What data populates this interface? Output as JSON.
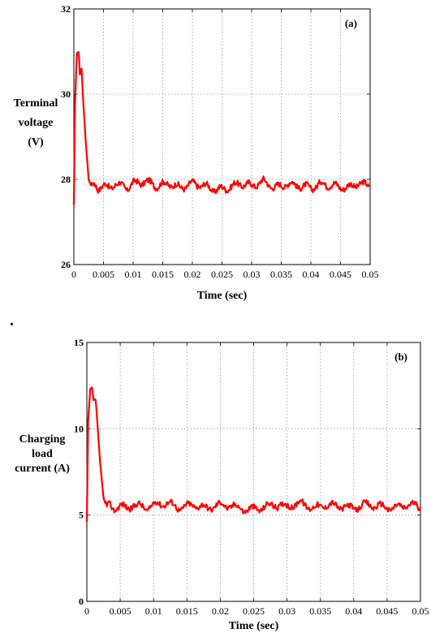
{
  "separator_mark": ".",
  "chart_data": [
    {
      "type": "line",
      "panel_label": "(a)",
      "ylabel_lines": [
        "Terminal",
        "voltage",
        "(V)"
      ],
      "xlabel": "Time (sec)",
      "xlim": [
        0,
        0.05
      ],
      "ylim": [
        26,
        32
      ],
      "x_ticks": [
        0,
        0.005,
        0.01,
        0.015,
        0.02,
        0.025,
        0.03,
        0.035,
        0.04,
        0.045,
        0.05
      ],
      "x_tick_labels": [
        "0",
        "0.005",
        "0.01",
        "0.015",
        "0.02",
        "0.025",
        "0.03",
        "0.035",
        "0.04",
        "0.045",
        "0.05"
      ],
      "y_ticks": [
        26,
        28,
        30,
        32
      ],
      "y_tick_labels": [
        "26",
        "28",
        "30",
        "32"
      ],
      "grid": true,
      "color": "#ff0000",
      "series": [
        {
          "x": [
            0,
            0.0002,
            0.0005,
            0.0008,
            0.001,
            0.0013,
            0.0016,
            0.002,
            0.0025,
            0.003,
            0.0035,
            0.004,
            0.005,
            0.006,
            0.007,
            0.008,
            0.009,
            0.01,
            0.012,
            0.014,
            0.016,
            0.018,
            0.02,
            0.022,
            0.024,
            0.026,
            0.028,
            0.03,
            0.032,
            0.034,
            0.036,
            0.038,
            0.04,
            0.042,
            0.044,
            0.046,
            0.048,
            0.05
          ],
          "y": [
            27.4,
            29.8,
            30.9,
            31.0,
            30.5,
            30.6,
            29.8,
            28.9,
            28.0,
            27.8,
            27.9,
            27.8,
            27.85,
            27.8,
            27.9,
            27.85,
            27.8,
            27.9,
            27.95,
            27.85,
            27.9,
            27.8,
            27.9,
            27.85,
            27.75,
            27.8,
            27.9,
            27.85,
            27.95,
            27.8,
            27.9,
            27.85,
            27.8,
            27.9,
            27.85,
            27.8,
            27.9,
            27.85
          ]
        }
      ]
    },
    {
      "type": "line",
      "panel_label": "(b)",
      "ylabel_lines": [
        "Charging",
        "load",
        "current (A)"
      ],
      "xlabel": "Time (sec)",
      "xlim": [
        0,
        0.05
      ],
      "ylim": [
        0,
        15
      ],
      "x_ticks": [
        0,
        0.005,
        0.01,
        0.015,
        0.02,
        0.025,
        0.03,
        0.035,
        0.04,
        0.045,
        0.05
      ],
      "x_tick_labels": [
        "0",
        "0.005",
        "0.01",
        "0.015",
        "0.02",
        "0.025",
        "0.03",
        "0.035",
        "0.04",
        "0.045",
        "0.05"
      ],
      "y_ticks": [
        0,
        5,
        10,
        15
      ],
      "y_tick_labels": [
        "0",
        "5",
        "10",
        "15"
      ],
      "grid": true,
      "color": "#ff0000",
      "series": [
        {
          "x": [
            0,
            0.0002,
            0.0005,
            0.0008,
            0.001,
            0.0013,
            0.0016,
            0.002,
            0.0025,
            0.003,
            0.0035,
            0.004,
            0.005,
            0.006,
            0.007,
            0.008,
            0.009,
            0.01,
            0.012,
            0.014,
            0.016,
            0.018,
            0.02,
            0.022,
            0.024,
            0.026,
            0.028,
            0.03,
            0.032,
            0.034,
            0.036,
            0.038,
            0.04,
            0.042,
            0.044,
            0.046,
            0.048,
            0.05
          ],
          "y": [
            4.6,
            10.5,
            12.2,
            12.3,
            11.6,
            11.8,
            10.2,
            8.0,
            6.0,
            5.4,
            5.6,
            5.4,
            5.5,
            5.4,
            5.6,
            5.5,
            5.4,
            5.6,
            5.7,
            5.4,
            5.6,
            5.4,
            5.6,
            5.5,
            5.3,
            5.4,
            5.6,
            5.5,
            5.7,
            5.4,
            5.6,
            5.5,
            5.4,
            5.6,
            5.5,
            5.4,
            5.6,
            5.5
          ]
        }
      ]
    }
  ]
}
